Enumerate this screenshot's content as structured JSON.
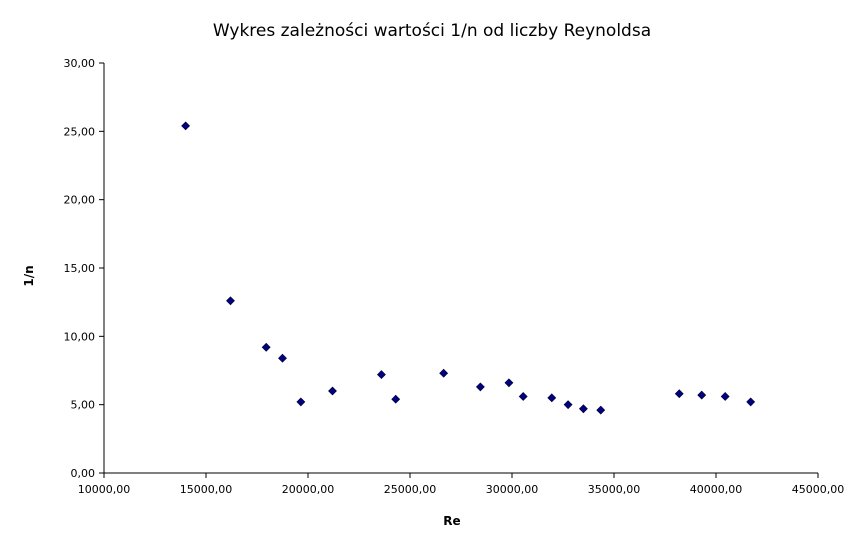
{
  "chart_data": {
    "type": "scatter",
    "title": "Wykres zależności wartości 1/n od liczby Reynoldsa",
    "xlabel": "Re",
    "ylabel": "1/n",
    "xlim": [
      10000,
      45000
    ],
    "ylim": [
      0,
      30
    ],
    "x_ticks": [
      "10000,00",
      "15000,00",
      "20000,00",
      "25000,00",
      "30000,00",
      "35000,00",
      "40000,00",
      "45000,00"
    ],
    "y_ticks": [
      "0,00",
      "5,00",
      "10,00",
      "15,00",
      "20,00",
      "25,00",
      "30,00"
    ],
    "grid": false,
    "legend": "none",
    "marker_color": "#000080",
    "marker": "diamond",
    "series": [
      {
        "points": [
          [
            14000,
            25.4
          ],
          [
            16200,
            12.6
          ],
          [
            17950,
            9.2
          ],
          [
            18750,
            8.4
          ],
          [
            19650,
            5.2
          ],
          [
            21200,
            6.0
          ],
          [
            23600,
            7.2
          ],
          [
            24300,
            5.4
          ],
          [
            26650,
            7.3
          ],
          [
            28450,
            6.3
          ],
          [
            29850,
            6.6
          ],
          [
            30550,
            5.6
          ],
          [
            31950,
            5.5
          ],
          [
            32750,
            5.0
          ],
          [
            33500,
            4.7
          ],
          [
            34350,
            4.6
          ],
          [
            38200,
            5.8
          ],
          [
            39300,
            5.7
          ],
          [
            40450,
            5.6
          ],
          [
            41700,
            5.2
          ]
        ]
      }
    ]
  }
}
